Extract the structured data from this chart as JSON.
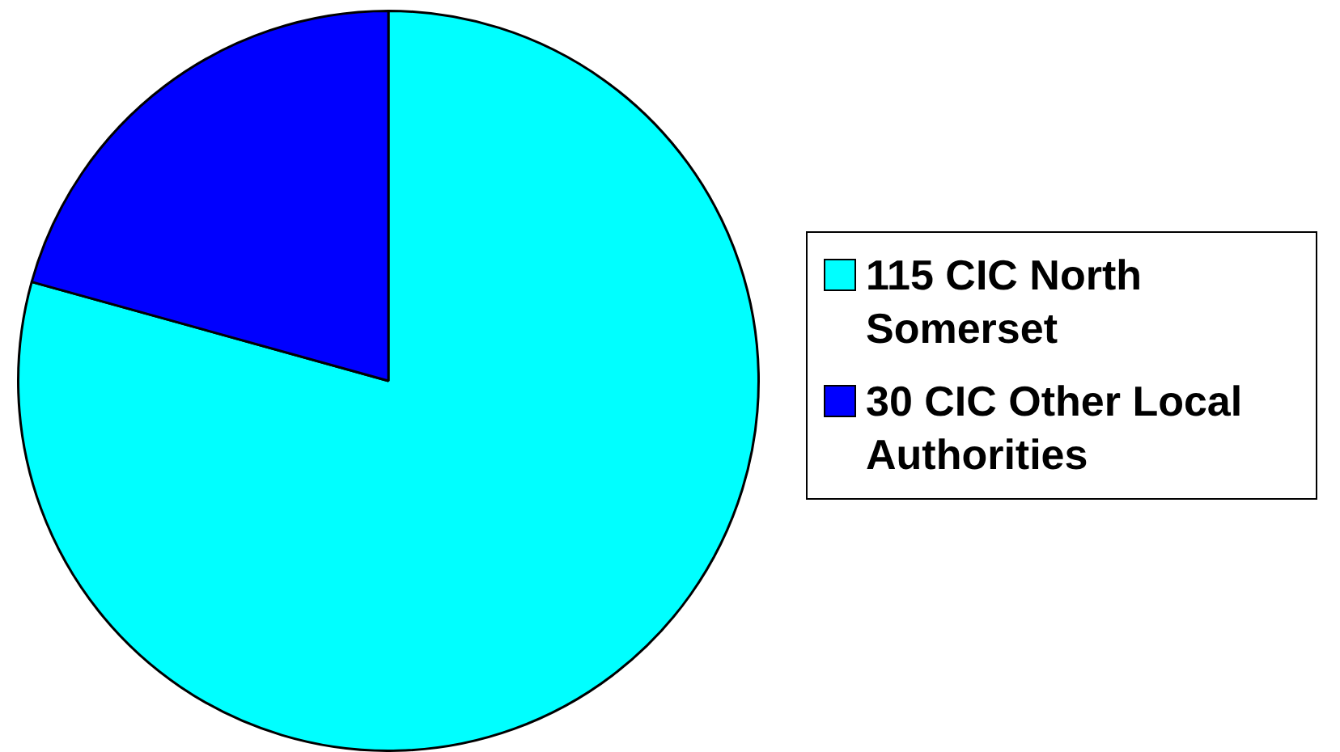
{
  "chart_data": {
    "type": "pie",
    "categories": [
      "115 CIC North Somerset",
      "30 CIC Other Local Authorities"
    ],
    "values": [
      115,
      30
    ],
    "colors": [
      "#00ffff",
      "#0000ff"
    ],
    "legend": "right"
  }
}
